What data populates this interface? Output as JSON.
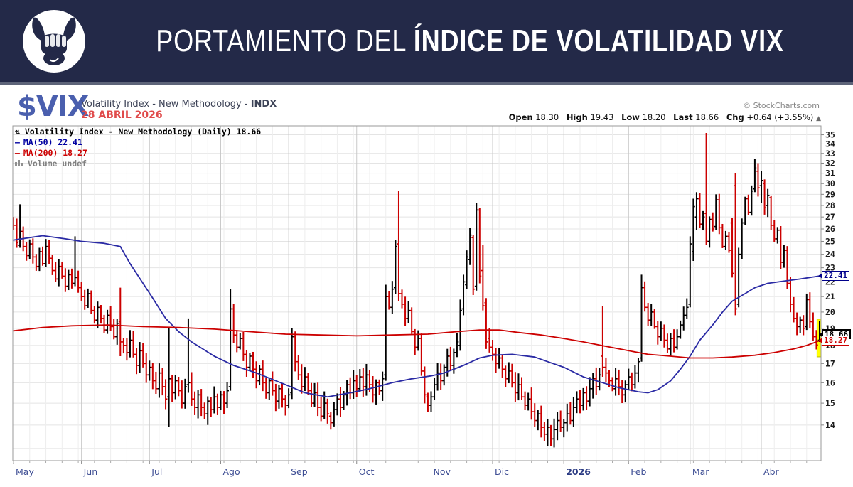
{
  "header": {
    "title_regular": "PORTAMIENTO DEL ",
    "title_bold": "ÍNDICE DE VOLATILIDAD VIX",
    "logo": "bull-fist-icon"
  },
  "ticker": {
    "symbol": "$VIX",
    "name": "Volatility Index - New Methodology - ",
    "exchange": "INDX",
    "date": "28 ABRIL 2026",
    "credit": "© StockCharts.com"
  },
  "quote": {
    "open_label": "Open",
    "open": "18.30",
    "high_label": "High",
    "high": "19.43",
    "low_label": "Low",
    "low": "18.20",
    "last_label": "Last",
    "last": "18.66",
    "chg_label": "Chg",
    "chg": "+0.64 (+3.55%)",
    "direction_icon": "▲"
  },
  "legend": {
    "icon": "⇅",
    "title": "Volatility Index - New Methodology (Daily) 18.66",
    "ma50_label": "MA(50) 22.41",
    "ma200_label": "MA(200) 18.27",
    "volume_label": "Volume undef"
  },
  "price_tags": [
    {
      "label": "22.41",
      "value": 22.41,
      "color": "#00008b",
      "bold": false
    },
    {
      "label": "18.66",
      "value": 18.66,
      "color": "#000000",
      "bold": true
    },
    {
      "label": "18.27",
      "value": 18.27,
      "color": "#cc0000",
      "bold": false
    }
  ],
  "colors": {
    "header_bg": "#232948",
    "header_rule": "#5d6479",
    "ticker_blue": "#4a5fae",
    "date_red": "#e04b4b",
    "bar_up": "#000000",
    "bar_down": "#cc0000",
    "ma50": "#2a2aa4",
    "ma200": "#cc0000",
    "grid": "#e4e4e4",
    "grid_week": "#eeeeee",
    "grid_month": "#c8c8c8",
    "plot_border": "#999999",
    "axis_text": "#1c1c1c",
    "month_text": "#3e4e94",
    "year_text": "#2c3c84",
    "highlight": "#ffff00",
    "highlight_border": "#b8b800"
  },
  "chart_data": {
    "type": "ohlc-bar",
    "title": "Volatility Index - New Methodology (Daily)",
    "last": 18.66,
    "scale": "log",
    "ylim": [
      12.4,
      36.0
    ],
    "yticks": [
      14,
      15,
      16,
      17,
      18,
      19,
      20,
      21,
      22,
      23,
      24,
      25,
      26,
      27,
      28,
      29,
      30,
      31,
      32,
      33,
      34,
      35
    ],
    "grid": true,
    "months": [
      {
        "label": "May",
        "days": 21,
        "bold": false
      },
      {
        "label": "Jun",
        "days": 21,
        "bold": false
      },
      {
        "label": "Jul",
        "days": 22,
        "bold": false
      },
      {
        "label": "Ago",
        "days": 21,
        "bold": false
      },
      {
        "label": "Sep",
        "days": 21,
        "bold": false
      },
      {
        "label": "Oct",
        "days": 23,
        "bold": false
      },
      {
        "label": "Nov",
        "days": 19,
        "bold": false
      },
      {
        "label": "Dic",
        "days": 22,
        "bold": false
      },
      {
        "label": "2026",
        "days": 20,
        "bold": true
      },
      {
        "label": "Feb",
        "days": 19,
        "bold": false
      },
      {
        "label": "Mar",
        "days": 22,
        "bold": false
      },
      {
        "label": "Abr",
        "days": 19,
        "bold": false
      }
    ],
    "closes": [
      26.3,
      24.9,
      25.8,
      24.6,
      23.9,
      24.8,
      23.8,
      23.1,
      24.2,
      23.3,
      24.6,
      23.7,
      22.8,
      22.2,
      23.1,
      22.4,
      21.7,
      22.5,
      21.9,
      22.3,
      21.6,
      21.0,
      20.4,
      21.2,
      20.1,
      19.5,
      20.3,
      19.6,
      18.9,
      19.8,
      19.1,
      18.5,
      19.3,
      18.2,
      18.0,
      17.6,
      18.3,
      17.5,
      16.9,
      17.7,
      17.0,
      16.4,
      16.8,
      16.1,
      15.7,
      16.5,
      15.8,
      15.2,
      16.2,
      15.5,
      16.1,
      15.6,
      15.0,
      15.8,
      16.0,
      15.2,
      14.8,
      15.4,
      14.8,
      14.5,
      15.1,
      14.7,
      15.3,
      14.8,
      15.4,
      15.0,
      15.6,
      20.2,
      18.6,
      17.9,
      18.4,
      17.5,
      16.8,
      17.4,
      16.7,
      16.1,
      16.7,
      16.0,
      15.5,
      16.1,
      15.6,
      15.1,
      15.7,
      15.2,
      14.9,
      15.4,
      18.5,
      17.1,
      16.4,
      15.8,
      16.3,
      15.6,
      15.0,
      15.5,
      14.8,
      14.4,
      15.0,
      14.5,
      14.1,
      14.7,
      15.2,
      14.8,
      15.4,
      15.9,
      15.5,
      16.1,
      15.7,
      16.3,
      15.8,
      16.4,
      15.9,
      15.4,
      16.0,
      15.6,
      16.2,
      21.0,
      20.3,
      21.5,
      24.6,
      21.2,
      20.5,
      19.6,
      20.1,
      18.8,
      17.9,
      18.4,
      16.6,
      15.4,
      14.9,
      15.3,
      15.9,
      16.5,
      16.1,
      16.8,
      17.4,
      16.9,
      17.6,
      18.2,
      20.1,
      22.0,
      23.8,
      25.5,
      21.5,
      27.6,
      22.4,
      20.4,
      18.2,
      17.9,
      17.5,
      17.0,
      17.3,
      16.7,
      16.2,
      16.6,
      16.0,
      15.5,
      15.9,
      15.3,
      14.9,
      15.2,
      14.6,
      14.2,
      14.5,
      13.9,
      13.6,
      13.9,
      13.4,
      13.8,
      14.2,
      13.9,
      14.1,
      14.5,
      14.2,
      14.8,
      15.2,
      14.9,
      15.5,
      15.1,
      15.7,
      16.2,
      15.8,
      16.4,
      16.8,
      16.5,
      16.1,
      15.7,
      16.2,
      15.8,
      15.4,
      15.9,
      16.3,
      15.9,
      16.5,
      17.1,
      21.6,
      20.3,
      19.5,
      20.0,
      19.1,
      18.5,
      19.0,
      18.3,
      17.8,
      18.4,
      17.9,
      18.5,
      19.2,
      19.8,
      20.3,
      24.8,
      27.9,
      28.6,
      26.4,
      27.0,
      25.0,
      26.8,
      26.0,
      28.5,
      26.1,
      24.6,
      25.4,
      24.3,
      22.6,
      20.2,
      24.0,
      26.5,
      28.6,
      27.4,
      29.3,
      31.5,
      29.6,
      30.3,
      27.8,
      28.9,
      26.3,
      25.2,
      25.9,
      23.4,
      24.3,
      21.9,
      20.5,
      19.6,
      19.1,
      19.5,
      19.0,
      20.8,
      19.4,
      18.5,
      18.02,
      18.66
    ],
    "events": {
      "0": [
        26.8,
        27.0,
        25.9,
        26.3
      ],
      "2": [
        24.7,
        28.1,
        24.5,
        25.8
      ],
      "19": [
        21.9,
        25.4,
        21.7,
        22.3
      ],
      "33": [
        19.4,
        21.6,
        17.4,
        18.2
      ],
      "48": [
        15.3,
        19.0,
        13.9,
        16.2
      ],
      "54": [
        15.9,
        19.6,
        15.5,
        16.0
      ],
      "67": [
        15.8,
        21.5,
        15.6,
        20.2
      ],
      "86": [
        15.5,
        19.0,
        15.2,
        18.5
      ],
      "98": [
        14.4,
        14.6,
        13.8,
        14.1
      ],
      "115": [
        16.4,
        21.8,
        16.1,
        21.0
      ],
      "118": [
        21.6,
        25.1,
        21.2,
        24.6
      ],
      "119": [
        24.8,
        29.3,
        20.7,
        21.2
      ],
      "128": [
        15.3,
        15.5,
        14.6,
        14.9
      ],
      "138": [
        18.0,
        20.8,
        17.7,
        20.1
      ],
      "139": [
        20.2,
        22.5,
        19.8,
        22.0
      ],
      "140": [
        21.8,
        24.3,
        21.5,
        23.8
      ],
      "141": [
        23.6,
        26.1,
        23.2,
        25.5
      ],
      "142": [
        25.3,
        25.5,
        21.1,
        21.5
      ],
      "143": [
        21.7,
        28.2,
        21.4,
        27.6
      ],
      "144": [
        27.6,
        27.8,
        21.9,
        22.4
      ],
      "145": [
        22.8,
        24.7,
        20.1,
        20.4
      ],
      "146": [
        20.6,
        20.9,
        17.8,
        18.2
      ],
      "147": [
        18.4,
        19.0,
        17.6,
        17.9
      ],
      "166": [
        13.9,
        14.0,
        13.1,
        13.4
      ],
      "182": [
        17.4,
        20.4,
        16.3,
        16.8
      ],
      "194": [
        17.3,
        22.5,
        17.1,
        21.6
      ],
      "209": [
        20.5,
        25.4,
        20.3,
        24.8
      ],
      "210": [
        24.2,
        28.6,
        23.5,
        27.9
      ],
      "211": [
        27.0,
        29.2,
        25.9,
        28.6
      ],
      "214": [
        27.3,
        35.2,
        24.7,
        25.0
      ],
      "217": [
        26.2,
        29.0,
        25.9,
        28.5
      ],
      "222": [
        26.5,
        26.9,
        22.3,
        22.6
      ],
      "223": [
        29.8,
        31.0,
        19.8,
        20.2
      ],
      "224": [
        20.5,
        24.5,
        20.3,
        24.0
      ],
      "229": [
        29.5,
        32.4,
        29.2,
        31.5
      ],
      "230": [
        31.2,
        32.0,
        28.8,
        29.6
      ],
      "231": [
        29.8,
        31.2,
        28.2,
        30.3
      ],
      "232": [
        30.0,
        30.4,
        27.2,
        27.8
      ],
      "233": [
        28.0,
        29.5,
        27.0,
        28.9
      ],
      "234": [
        28.7,
        28.9,
        25.9,
        26.3
      ],
      "245": [
        19.1,
        21.2,
        18.9,
        20.8
      ],
      "249": [
        18.3,
        19.43,
        18.2,
        18.66
      ]
    },
    "hl_noise": {
      "h_base": 0.15,
      "h_amp": 0.45,
      "l_base": 0.12,
      "l_amp": 0.4
    },
    "series": [
      {
        "name": "MA(50)",
        "value": 22.41,
        "color": "#2a2aa4",
        "points": [
          [
            0,
            25.1
          ],
          [
            5,
            25.3
          ],
          [
            9,
            25.45
          ],
          [
            16,
            25.2
          ],
          [
            21,
            25.0
          ],
          [
            28,
            24.85
          ],
          [
            33,
            24.6
          ],
          [
            36,
            23.3
          ],
          [
            40,
            21.9
          ],
          [
            43,
            20.9
          ],
          [
            47,
            19.6
          ],
          [
            51,
            18.8
          ],
          [
            55,
            18.2
          ],
          [
            62,
            17.4
          ],
          [
            68,
            16.9
          ],
          [
            75,
            16.5
          ],
          [
            84,
            15.9
          ],
          [
            90,
            15.5
          ],
          [
            97,
            15.3
          ],
          [
            104,
            15.5
          ],
          [
            110,
            15.7
          ],
          [
            117,
            16.0
          ],
          [
            123,
            16.2
          ],
          [
            129,
            16.35
          ],
          [
            133,
            16.5
          ],
          [
            139,
            16.9
          ],
          [
            144,
            17.3
          ],
          [
            148,
            17.45
          ],
          [
            154,
            17.5
          ],
          [
            161,
            17.35
          ],
          [
            165,
            17.1
          ],
          [
            170,
            16.8
          ],
          [
            176,
            16.3
          ],
          [
            182,
            16.0
          ],
          [
            187,
            15.75
          ],
          [
            193,
            15.55
          ],
          [
            196,
            15.5
          ],
          [
            199,
            15.65
          ],
          [
            203,
            16.1
          ],
          [
            206,
            16.7
          ],
          [
            209,
            17.4
          ],
          [
            212,
            18.3
          ],
          [
            216,
            19.2
          ],
          [
            219,
            20.0
          ],
          [
            222,
            20.7
          ],
          [
            226,
            21.2
          ],
          [
            229,
            21.6
          ],
          [
            233,
            21.9
          ],
          [
            238,
            22.05
          ],
          [
            243,
            22.2
          ],
          [
            249,
            22.41
          ]
        ]
      },
      {
        "name": "MA(200)",
        "value": 18.27,
        "color": "#cc0000",
        "points": [
          [
            0,
            18.85
          ],
          [
            9,
            19.05
          ],
          [
            18,
            19.15
          ],
          [
            29,
            19.2
          ],
          [
            40,
            19.1
          ],
          [
            51,
            19.05
          ],
          [
            62,
            18.95
          ],
          [
            73,
            18.8
          ],
          [
            84,
            18.65
          ],
          [
            95,
            18.6
          ],
          [
            106,
            18.55
          ],
          [
            117,
            18.6
          ],
          [
            128,
            18.65
          ],
          [
            137,
            18.8
          ],
          [
            144,
            18.9
          ],
          [
            150,
            18.9
          ],
          [
            156,
            18.75
          ],
          [
            163,
            18.6
          ],
          [
            170,
            18.4
          ],
          [
            176,
            18.2
          ],
          [
            183,
            17.95
          ],
          [
            190,
            17.7
          ],
          [
            196,
            17.5
          ],
          [
            203,
            17.4
          ],
          [
            209,
            17.3
          ],
          [
            216,
            17.3
          ],
          [
            222,
            17.35
          ],
          [
            229,
            17.45
          ],
          [
            235,
            17.6
          ],
          [
            241,
            17.8
          ],
          [
            245,
            18.0
          ],
          [
            249,
            18.27
          ]
        ]
      }
    ],
    "highlight_last_bar": true
  }
}
